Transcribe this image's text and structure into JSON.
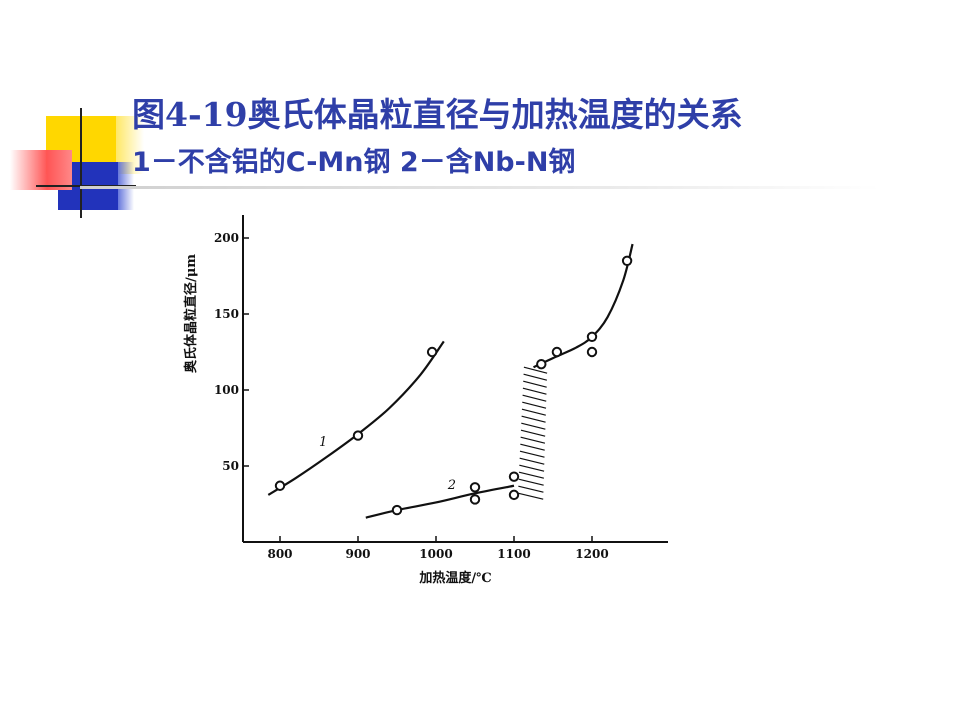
{
  "slide": {
    "title": "图4-19奥氏体晶粒直径与加热温度的关系",
    "subtitle": "1－不含铝的C-Mn钢  2－含Nb-N钢"
  },
  "colors": {
    "title": "#2f3fa8",
    "accent_yellow": "#ffd700",
    "accent_blue": "#2233bb",
    "accent_red": "#ff5555",
    "ink": "#111111"
  },
  "chart_data": {
    "type": "line",
    "xlabel": "加热温度/℃",
    "ylabel": "奥氏体晶粒直径/μm",
    "x_ticks": [
      800,
      900,
      1000,
      1100,
      1200
    ],
    "y_ticks": [
      50,
      100,
      150,
      200
    ],
    "xlim": [
      760,
      1290
    ],
    "ylim": [
      0,
      215
    ],
    "grid": false,
    "legend": "none",
    "series": [
      {
        "name": "1",
        "curve": [
          [
            785,
            31
          ],
          [
            820,
            42
          ],
          [
            860,
            56
          ],
          [
            900,
            71
          ],
          [
            940,
            88
          ],
          [
            980,
            110
          ],
          [
            1010,
            132
          ]
        ],
        "points": [
          [
            800,
            37
          ],
          [
            900,
            70
          ],
          [
            995,
            125
          ]
        ]
      },
      {
        "name": "2",
        "curve_low": [
          [
            910,
            16
          ],
          [
            950,
            21
          ],
          [
            1000,
            26
          ],
          [
            1050,
            32
          ],
          [
            1100,
            37
          ]
        ],
        "curve_high": [
          [
            1125,
            115
          ],
          [
            1150,
            121
          ],
          [
            1180,
            128
          ],
          [
            1200,
            135
          ],
          [
            1220,
            148
          ],
          [
            1240,
            172
          ],
          [
            1252,
            196
          ]
        ],
        "points": [
          [
            950,
            21
          ],
          [
            1050,
            36
          ],
          [
            1050,
            28
          ],
          [
            1100,
            43
          ],
          [
            1100,
            31
          ],
          [
            1135,
            117
          ],
          [
            1155,
            125
          ],
          [
            1200,
            135
          ],
          [
            1200,
            125
          ],
          [
            1245,
            185
          ]
        ]
      }
    ],
    "transition_band": {
      "x_from": 1105,
      "x_to": 1145,
      "y_from": 30,
      "y_to": 115
    }
  }
}
